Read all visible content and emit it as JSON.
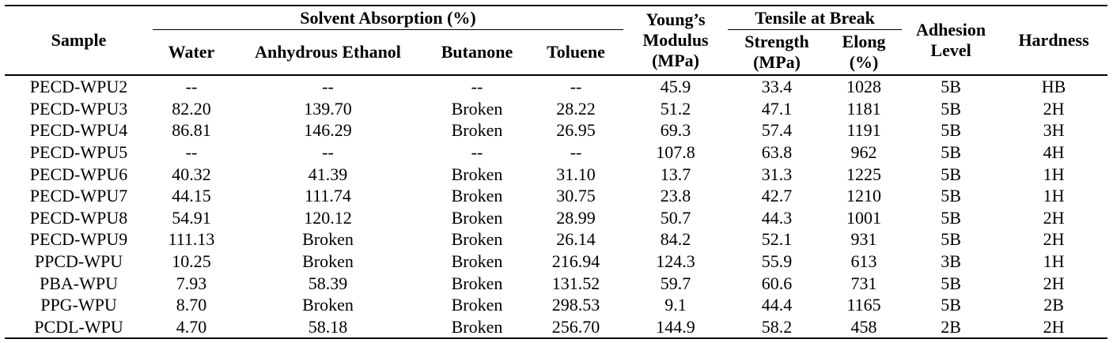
{
  "table": {
    "headers": {
      "sample": "Sample",
      "solvent_absorption": "Solvent Absorption (%)",
      "water": "Water",
      "anhydrous_ethanol": "Anhydrous Ethanol",
      "butanone": "Butanone",
      "toluene": "Toluene",
      "youngs_line1": "Young’s",
      "youngs_line2": "Modulus",
      "youngs_line3": "(MPa)",
      "tensile_at_break": "Tensile at Break",
      "strength_line1": "Strength",
      "strength_line2": "(MPa)",
      "elong_line1": "Elong",
      "elong_line2": "(%)",
      "adhesion_line1": "Adhesion",
      "adhesion_line2": "Level",
      "hardness": "Hardness"
    },
    "rows": [
      [
        "PECD-WPU2",
        "--",
        "--",
        "--",
        "--",
        "45.9",
        "33.4",
        "1028",
        "5B",
        "HB"
      ],
      [
        "PECD-WPU3",
        "82.20",
        "139.70",
        "Broken",
        "28.22",
        "51.2",
        "47.1",
        "1181",
        "5B",
        "2H"
      ],
      [
        "PECD-WPU4",
        "86.81",
        "146.29",
        "Broken",
        "26.95",
        "69.3",
        "57.4",
        "1191",
        "5B",
        "3H"
      ],
      [
        "PECD-WPU5",
        "--",
        "--",
        "--",
        "--",
        "107.8",
        "63.8",
        "962",
        "5B",
        "4H"
      ],
      [
        "PECD-WPU6",
        "40.32",
        "41.39",
        "Broken",
        "31.10",
        "13.7",
        "31.3",
        "1225",
        "5B",
        "1H"
      ],
      [
        "PECD-WPU7",
        "44.15",
        "111.74",
        "Broken",
        "30.75",
        "23.8",
        "42.7",
        "1210",
        "5B",
        "1H"
      ],
      [
        "PECD-WPU8",
        "54.91",
        "120.12",
        "Broken",
        "28.99",
        "50.7",
        "44.3",
        "1001",
        "5B",
        "2H"
      ],
      [
        "PECD-WPU9",
        "111.13",
        "Broken",
        "Broken",
        "26.14",
        "84.2",
        "52.1",
        "931",
        "5B",
        "2H"
      ],
      [
        "PPCD-WPU",
        "10.25",
        "Broken",
        "Broken",
        "216.94",
        "124.3",
        "55.9",
        "613",
        "3B",
        "1H"
      ],
      [
        "PBA-WPU",
        "7.93",
        "58.39",
        "Broken",
        "131.52",
        "59.7",
        "60.6",
        "731",
        "5B",
        "2H"
      ],
      [
        "PPG-WPU",
        "8.70",
        "Broken",
        "Broken",
        "298.53",
        "9.1",
        "44.4",
        "1165",
        "5B",
        "2B"
      ],
      [
        "PCDL-WPU",
        "4.70",
        "58.18",
        "Broken",
        "256.70",
        "144.9",
        "58.2",
        "458",
        "2B",
        "2H"
      ]
    ]
  }
}
